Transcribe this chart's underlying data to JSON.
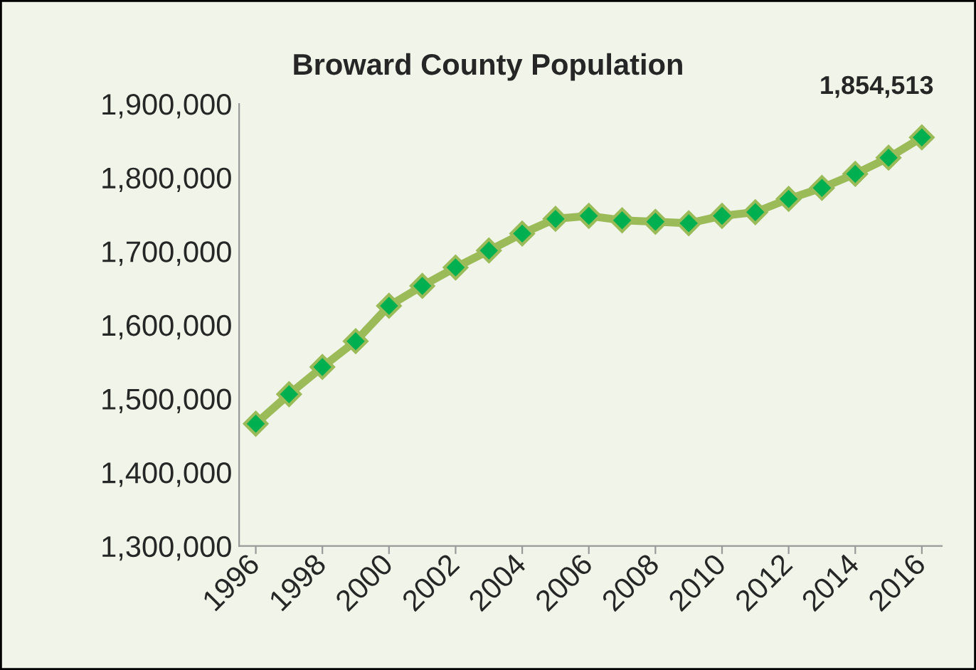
{
  "chart_data": {
    "type": "line",
    "title": "Broward County Population",
    "x": [
      1996,
      1997,
      1998,
      1999,
      2000,
      2001,
      2002,
      2003,
      2004,
      2005,
      2006,
      2007,
      2008,
      2009,
      2010,
      2011,
      2012,
      2013,
      2014,
      2015,
      2016
    ],
    "series": [
      {
        "color": "#9bbb59",
        "values": [
          1466000,
          1506000,
          1543000,
          1578000,
          1626000,
          1653000,
          1678000,
          1701000,
          1724000,
          1744000,
          1748000,
          1742000,
          1740000,
          1738000,
          1748000,
          1753000,
          1771000,
          1786000,
          1805000,
          1827000,
          1854513
        ]
      }
    ],
    "xlim": [
      1995.5,
      2016.6
    ],
    "xticks": [
      1996,
      1998,
      2000,
      2002,
      2004,
      2006,
      2008,
      2010,
      2012,
      2014,
      2016
    ],
    "ylim": [
      1300000,
      1900000
    ],
    "yticks": [
      {
        "value": 1300000,
        "label": "1,300,000"
      },
      {
        "value": 1400000,
        "label": "1,400,000"
      },
      {
        "value": 1500000,
        "label": "1,500,000"
      },
      {
        "value": 1600000,
        "label": "1,600,000"
      },
      {
        "value": 1700000,
        "label": "1,700,000"
      },
      {
        "value": 1800000,
        "label": "1,800,000"
      },
      {
        "value": 1900000,
        "label": "1,900,000"
      }
    ],
    "annotations": [
      {
        "text": "1,854,513",
        "x": 2016,
        "y": 1854513
      }
    ],
    "marker": "diamond",
    "grid": false,
    "legend": false
  }
}
